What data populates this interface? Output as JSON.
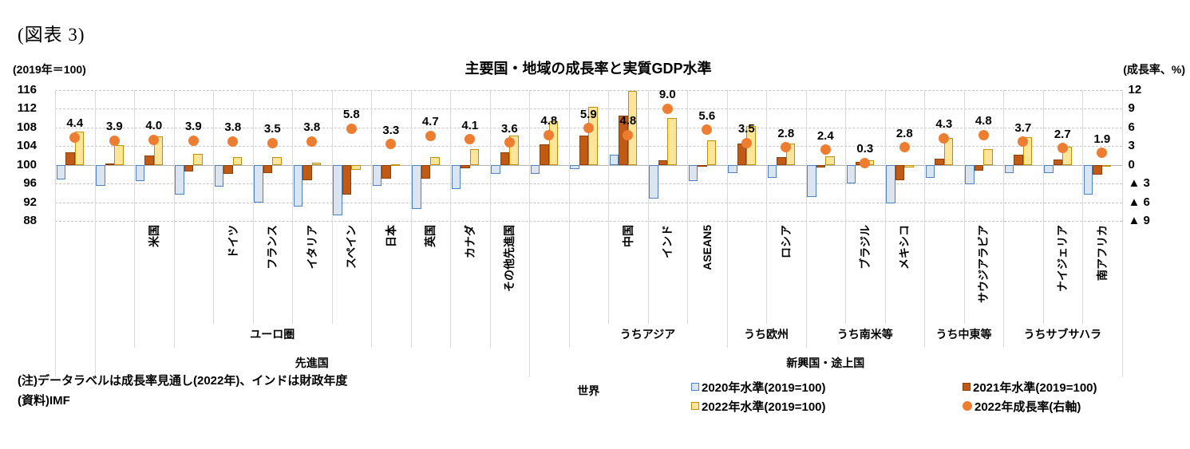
{
  "figure_label": "(図表 3)",
  "header": {
    "title": "主要国・地域の成長率と実質GDP水準",
    "axis_note_left": "(2019年＝100)",
    "axis_note_right": "(成長率、%)"
  },
  "notes": {
    "line1": "(注)データラベルは成長率見通し(2022年)、インドは財政年度",
    "line2": "(資料)IMF"
  },
  "legend": {
    "items": [
      {
        "label": "2020年水準(2019=100)",
        "swatch": "square",
        "fill": "#dbe5f1",
        "border": "#4f81bd"
      },
      {
        "label": "2021年水準(2019=100)",
        "swatch": "square",
        "fill": "#c05a15",
        "border": "#8a4009"
      },
      {
        "label": "2022年水準(2019=100)",
        "swatch": "square",
        "fill": "#ffe599",
        "border": "#bf9000"
      },
      {
        "label": "2022年成長率(右軸)",
        "swatch": "circle",
        "fill": "#ed7d31",
        "border": "#ed7d31"
      }
    ]
  },
  "colors": {
    "bar_2020_fill": "#dbe5f1",
    "bar_2020_border": "#4f81bd",
    "bar_2021_fill": "#c05a15",
    "bar_2021_border": "#8a4009",
    "bar_2022_fill": "#ffe599",
    "bar_2022_border": "#bf9000",
    "marker_fill": "#ed7d31",
    "grid_dash": "#c6c6c6",
    "grid_vertical": "#d9d9d9",
    "baseline": "#b3b3b3"
  },
  "chart_data": {
    "type": "bar",
    "title": "主要国・地域の成長率と実質GDP水準",
    "left_axis": {
      "title": "(2019年＝100)",
      "min": 88,
      "max": 116,
      "step": 4,
      "ticks": [
        "116",
        "112",
        "108",
        "104",
        "100",
        "96",
        "92",
        "88"
      ]
    },
    "right_axis": {
      "title": "(成長率、%)",
      "min": -9,
      "max": 12,
      "step": 3,
      "ticks": [
        "12",
        "9",
        "6",
        "3",
        "0",
        "▲ 3",
        "▲ 6",
        "▲ 9"
      ]
    },
    "grid": true,
    "legend_position": "bottom-right",
    "categories": [
      "",
      "",
      "米国",
      "",
      "ドイツ",
      "フランス",
      "イタリア",
      "スペイン",
      "日本",
      "英国",
      "カナダ",
      "その他先進国",
      "",
      "",
      "中国",
      "インド",
      "ASEAN5",
      "",
      "ロシア",
      "",
      "ブラジル",
      "メキシコ",
      "",
      "サウジアラビア",
      "",
      "ナイジェリア",
      "南アフリカ"
    ],
    "series": [
      {
        "name": "2020年水準(2019=100)",
        "type": "bar",
        "axis": "left",
        "values": [
          96.9,
          95.5,
          96.6,
          93.6,
          95.4,
          92.0,
          91.1,
          89.2,
          95.5,
          90.6,
          94.8,
          98.1,
          98.0,
          99.1,
          102.2,
          92.7,
          96.6,
          98.2,
          97.3,
          93.1,
          96.1,
          91.8,
          97.2,
          95.9,
          98.3,
          98.2,
          93.6
        ]
      },
      {
        "name": "2021年水準(2019=100)",
        "type": "bar",
        "axis": "left",
        "values": [
          102.6,
          100.3,
          102.0,
          98.5,
          98.0,
          98.2,
          96.7,
          93.6,
          97.0,
          97.1,
          99.3,
          102.7,
          104.4,
          106.2,
          110.5,
          101.0,
          99.6,
          104.6,
          101.7,
          99.4,
          100.6,
          96.7,
          101.3,
          98.7,
          102.2,
          101.1,
          97.9
        ]
      },
      {
        "name": "2022年水準(2019=100)",
        "type": "bar",
        "axis": "left",
        "values": [
          107.1,
          104.2,
          106.1,
          102.3,
          101.7,
          101.6,
          100.4,
          99.0,
          100.2,
          101.7,
          103.3,
          106.3,
          109.4,
          112.5,
          115.8,
          110.1,
          105.2,
          108.3,
          104.5,
          101.8,
          100.9,
          99.4,
          105.7,
          103.4,
          106.0,
          103.8,
          99.8
        ]
      },
      {
        "name": "2022年成長率(右軸)",
        "type": "marker",
        "axis": "right",
        "values": [
          4.4,
          3.9,
          4.0,
          3.9,
          3.8,
          3.5,
          3.8,
          5.8,
          3.3,
          4.7,
          4.1,
          3.6,
          4.8,
          5.9,
          4.8,
          9.0,
          5.6,
          3.5,
          2.8,
          2.4,
          0.3,
          2.8,
          4.3,
          4.8,
          3.7,
          2.7,
          1.9
        ]
      }
    ],
    "data_labels": [
      "4.4",
      "3.9",
      "4.0",
      "3.9",
      "3.8",
      "3.5",
      "3.8",
      "5.8",
      "3.3",
      "4.7",
      "4.1",
      "3.6",
      "4.8",
      "5.9",
      "4.8",
      "9.0",
      "5.6",
      "3.5",
      "2.8",
      "2.4",
      "0.3",
      "2.8",
      "4.3",
      "4.8",
      "3.7",
      "2.7",
      "1.9"
    ],
    "group_rows": {
      "tier2": [
        {
          "label": "ユーロ圏",
          "start": 3,
          "end": 7
        },
        {
          "label": "うちアジア",
          "start": 13,
          "end": 16
        },
        {
          "label": "うち欧州",
          "start": 17,
          "end": 18
        },
        {
          "label": "うち南米等",
          "start": 19,
          "end": 21
        },
        {
          "label": "うち中東等",
          "start": 22,
          "end": 23
        },
        {
          "label": "うちサブサハラ",
          "start": 24,
          "end": 26
        }
      ],
      "tier3": [
        {
          "label": "先進国",
          "start": 1,
          "end": 11
        },
        {
          "label": "新興国・途上国",
          "start": 12,
          "end": 26
        }
      ],
      "tier4": [
        {
          "label": "世界",
          "start": 0,
          "end": 26
        }
      ]
    }
  }
}
